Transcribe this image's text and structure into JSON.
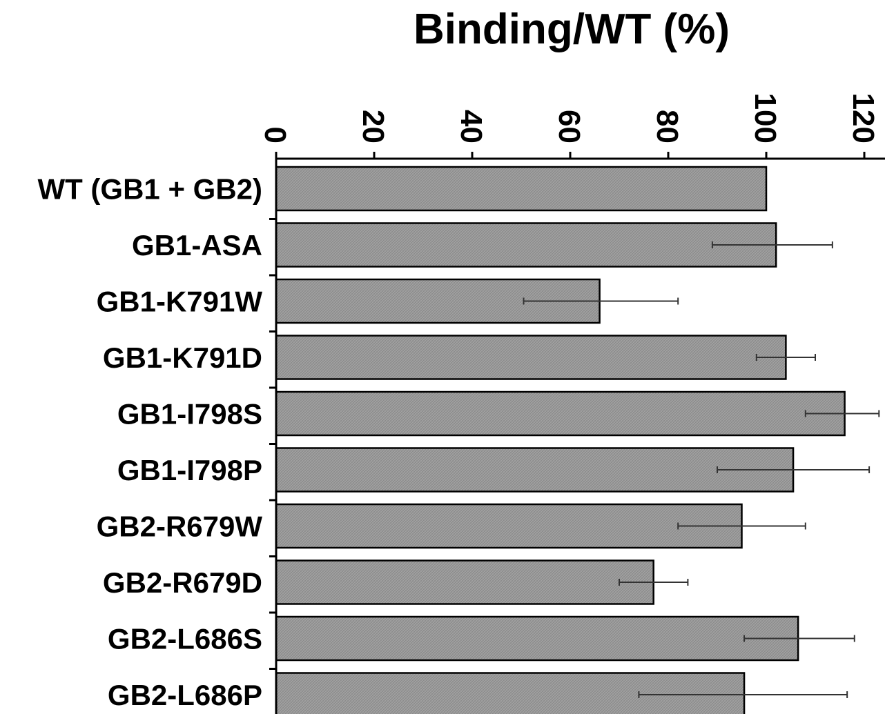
{
  "chart_data": {
    "type": "bar",
    "orientation": "horizontal",
    "title": "Binding/WT (%)",
    "xlabel": "Binding/WT (%)",
    "ylabel": "",
    "xlim": [
      0,
      120
    ],
    "x_ticks": [
      0,
      20,
      40,
      60,
      80,
      100,
      120
    ],
    "x_axis_position": "top",
    "grid": false,
    "legend": "none",
    "categories": [
      "WT (GB1 + GB2)",
      "GB1-ASA",
      "GB1-K791W",
      "GB1-K791D",
      "GB1-I798S",
      "GB1-I798P",
      "GB2-R679W",
      "GB2-R679D",
      "GB2-L686S",
      "GB2-L686P"
    ],
    "values": [
      100,
      102,
      66,
      104,
      116,
      105.5,
      95,
      77,
      106.5,
      95.5
    ],
    "error_low": [
      null,
      89,
      50.5,
      98,
      108,
      90,
      82,
      70,
      95.5,
      74
    ],
    "error_high": [
      null,
      113.5,
      82,
      110,
      123,
      121,
      108,
      84,
      118,
      116.5
    ],
    "colors": {
      "bar_fill": "#a3a3a3",
      "bar_hatch": "#8a8a8a",
      "bar_stroke": "#000000",
      "axis": "#000000",
      "error_bar": "#333333"
    }
  }
}
